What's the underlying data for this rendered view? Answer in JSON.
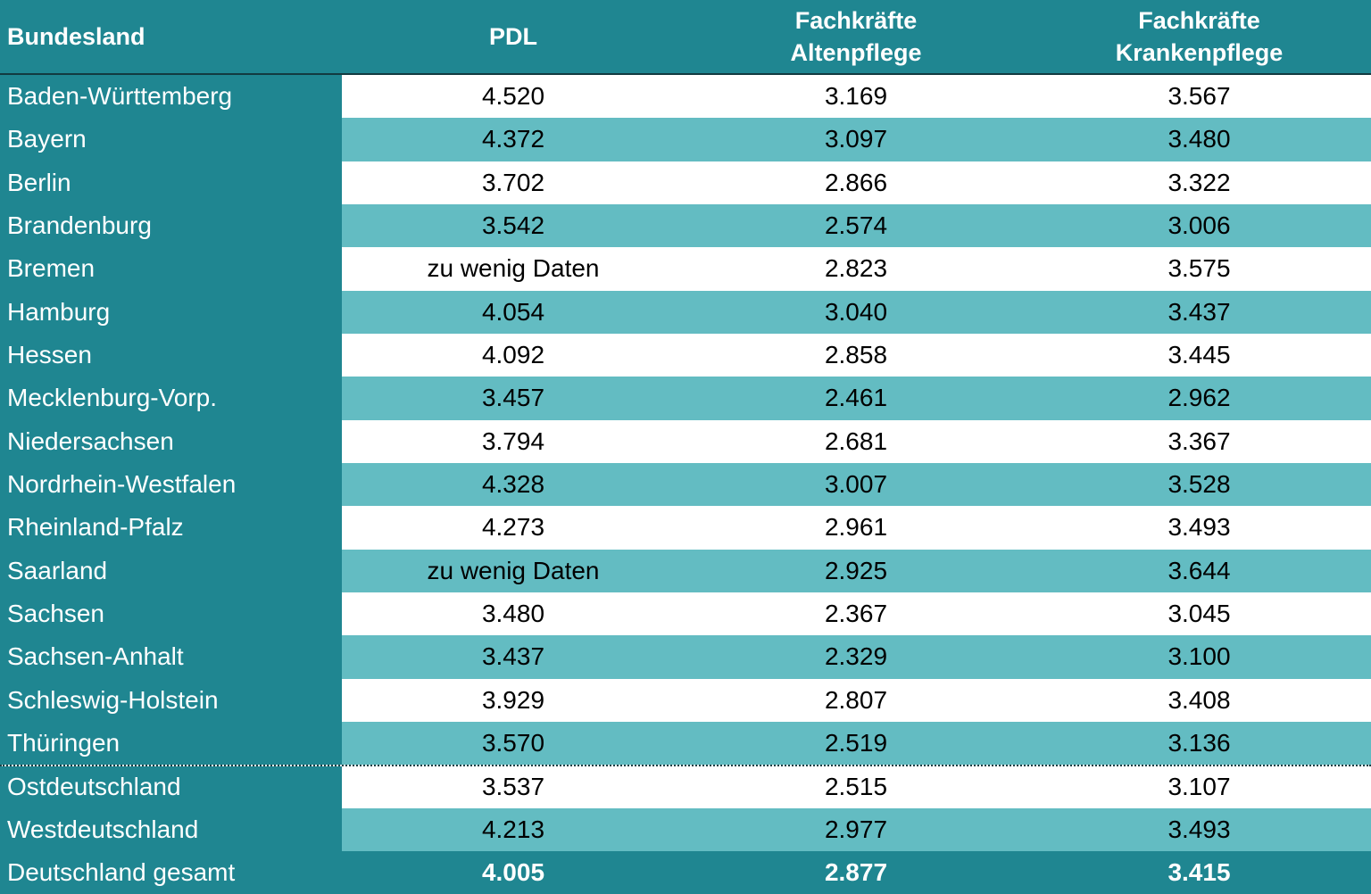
{
  "header": {
    "col0": "Bundesland",
    "col1": "PDL",
    "col2_line1": "Fachkräfte",
    "col2_line2": "Altenpflege",
    "col3_line1": "Fachkräfte",
    "col3_line2": "Krankenpflege"
  },
  "rows": [
    {
      "name": "Baden-Württemberg",
      "pdl": "4.520",
      "alten": "3.169",
      "kranken": "3.567"
    },
    {
      "name": "Bayern",
      "pdl": "4.372",
      "alten": "3.097",
      "kranken": "3.480"
    },
    {
      "name": "Berlin",
      "pdl": "3.702",
      "alten": "2.866",
      "kranken": "3.322"
    },
    {
      "name": "Brandenburg",
      "pdl": "3.542",
      "alten": "2.574",
      "kranken": "3.006"
    },
    {
      "name": "Bremen",
      "pdl": "zu wenig Daten",
      "alten": "2.823",
      "kranken": "3.575"
    },
    {
      "name": "Hamburg",
      "pdl": "4.054",
      "alten": "3.040",
      "kranken": "3.437"
    },
    {
      "name": "Hessen",
      "pdl": "4.092",
      "alten": "2.858",
      "kranken": "3.445"
    },
    {
      "name": "Mecklenburg-Vorp.",
      "pdl": "3.457",
      "alten": "2.461",
      "kranken": "2.962"
    },
    {
      "name": "Niedersachsen",
      "pdl": "3.794",
      "alten": "2.681",
      "kranken": "3.367"
    },
    {
      "name": "Nordrhein-Westfalen",
      "pdl": "4.328",
      "alten": "3.007",
      "kranken": "3.528"
    },
    {
      "name": "Rheinland-Pfalz",
      "pdl": "4.273",
      "alten": "2.961",
      "kranken": "3.493"
    },
    {
      "name": "Saarland",
      "pdl": "zu wenig Daten",
      "alten": "2.925",
      "kranken": "3.644"
    },
    {
      "name": "Sachsen",
      "pdl": "3.480",
      "alten": "2.367",
      "kranken": "3.045"
    },
    {
      "name": "Sachsen-Anhalt",
      "pdl": "3.437",
      "alten": "2.329",
      "kranken": "3.100"
    },
    {
      "name": "Schleswig-Holstein",
      "pdl": "3.929",
      "alten": "2.807",
      "kranken": "3.408"
    },
    {
      "name": "Thüringen",
      "pdl": "3.570",
      "alten": "2.519",
      "kranken": "3.136"
    },
    {
      "name": "Ostdeutschland",
      "pdl": "3.537",
      "alten": "2.515",
      "kranken": "3.107"
    },
    {
      "name": "Westdeutschland",
      "pdl": "4.213",
      "alten": "2.977",
      "kranken": "3.493"
    }
  ],
  "total": {
    "name": "Deutschland gesamt",
    "pdl": "4.005",
    "alten": "2.877",
    "kranken": "3.415"
  },
  "colors": {
    "header_bg": "#1f8691",
    "stripe": "#63bcc2",
    "white": "#ffffff"
  }
}
